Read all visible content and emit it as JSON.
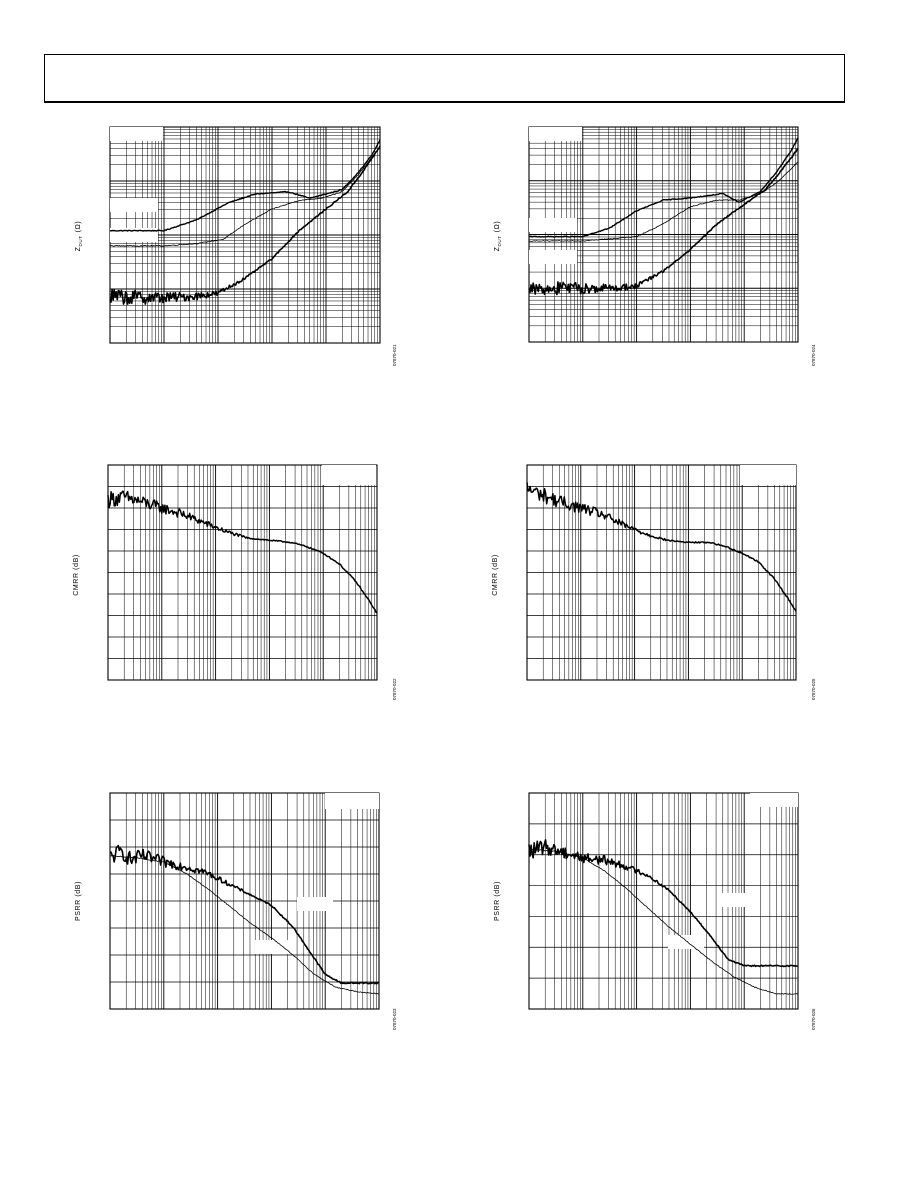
{
  "page": {
    "header": ""
  },
  "chart_data": [
    {
      "type": "line",
      "ylabel_main": "Z",
      "ylabel_sub": "DUT",
      "ylabel_unit": "(Ω)",
      "figure_code": "07870-021",
      "x_scale": "log",
      "y_scale": "log",
      "x_decades": 5,
      "y_decades": 4,
      "grid": true,
      "series": [
        {
          "values": [
            [
              0,
              0.52
            ],
            [
              0.5,
              0.52
            ],
            [
              1.0,
              0.52
            ],
            [
              1.6,
              0.57
            ],
            [
              2.2,
              0.65
            ],
            [
              2.7,
              0.69
            ],
            [
              3.3,
              0.7
            ],
            [
              3.7,
              0.67
            ],
            [
              4.0,
              0.69
            ],
            [
              4.3,
              0.71
            ],
            [
              4.6,
              0.79
            ],
            [
              4.85,
              0.87
            ],
            [
              5,
              0.94
            ]
          ],
          "stroke": 1.4
        },
        {
          "values": [
            [
              0,
              0.45
            ],
            [
              0.5,
              0.45
            ],
            [
              1.0,
              0.45
            ],
            [
              1.6,
              0.46
            ],
            [
              2.1,
              0.48
            ],
            [
              2.5,
              0.55
            ],
            [
              3.0,
              0.62
            ],
            [
              3.5,
              0.66
            ],
            [
              3.9,
              0.67
            ],
            [
              4.3,
              0.7
            ],
            [
              4.6,
              0.78
            ],
            [
              4.85,
              0.86
            ],
            [
              5,
              0.91
            ]
          ],
          "stroke": 0.8
        },
        {
          "values": [
            [
              0,
              0.215
            ],
            [
              0.5,
              0.21
            ],
            [
              1.0,
              0.21
            ],
            [
              1.5,
              0.215
            ],
            [
              2.0,
              0.23
            ],
            [
              2.5,
              0.3
            ],
            [
              3.0,
              0.39
            ],
            [
              3.5,
              0.52
            ],
            [
              4.0,
              0.62
            ],
            [
              4.4,
              0.7
            ],
            [
              4.7,
              0.8
            ],
            [
              5,
              0.91
            ]
          ],
          "stroke": 1.6,
          "noisy": true
        }
      ]
    },
    {
      "type": "line",
      "ylabel_main": "CMRR (dB)",
      "figure_code": "07870-022",
      "x_scale": "log",
      "x_decades": 5,
      "y_divisions": 10,
      "grid": true,
      "series": [
        {
          "values": [
            [
              0,
              0.84
            ],
            [
              0.3,
              0.85
            ],
            [
              0.6,
              0.83
            ],
            [
              1.0,
              0.8
            ],
            [
              1.4,
              0.77
            ],
            [
              1.8,
              0.73
            ],
            [
              2.2,
              0.69
            ],
            [
              2.6,
              0.66
            ],
            [
              3.0,
              0.65
            ],
            [
              3.4,
              0.64
            ],
            [
              3.7,
              0.62
            ],
            [
              4.0,
              0.59
            ],
            [
              4.3,
              0.54
            ],
            [
              4.6,
              0.46
            ],
            [
              4.85,
              0.37
            ],
            [
              5,
              0.31
            ]
          ],
          "stroke": 1.5,
          "noisy": true
        }
      ]
    },
    {
      "type": "line",
      "ylabel_main": "PSRR (dB)",
      "figure_code": "07870-023",
      "x_scale": "log",
      "x_decades": 5,
      "y_divisions": 8,
      "grid": true,
      "series": [
        {
          "values": [
            [
              0,
              0.7
            ],
            [
              0.2,
              0.73
            ],
            [
              0.4,
              0.69
            ],
            [
              0.6,
              0.71
            ],
            [
              1.0,
              0.68
            ],
            [
              1.4,
              0.66
            ],
            [
              1.8,
              0.63
            ],
            [
              2.2,
              0.58
            ],
            [
              2.6,
              0.53
            ],
            [
              3.0,
              0.48
            ],
            [
              3.4,
              0.38
            ],
            [
              3.7,
              0.27
            ],
            [
              4.0,
              0.16
            ],
            [
              4.3,
              0.12
            ],
            [
              4.6,
              0.12
            ],
            [
              5,
              0.12
            ]
          ],
          "stroke": 1.6,
          "noisy": true
        },
        {
          "values": [
            [
              0,
              0.71
            ],
            [
              0.5,
              0.7
            ],
            [
              1.0,
              0.68
            ],
            [
              1.4,
              0.63
            ],
            [
              1.8,
              0.56
            ],
            [
              2.2,
              0.48
            ],
            [
              2.6,
              0.4
            ],
            [
              3.0,
              0.33
            ],
            [
              3.4,
              0.25
            ],
            [
              3.8,
              0.16
            ],
            [
              4.2,
              0.1
            ],
            [
              4.6,
              0.08
            ],
            [
              5,
              0.07
            ]
          ],
          "stroke": 0.8
        }
      ]
    },
    {
      "type": "line",
      "ylabel_main": "Z",
      "ylabel_sub": "DUT",
      "ylabel_unit": "(Ω)",
      "figure_code": "07870-024",
      "x_scale": "log",
      "y_scale": "log",
      "x_decades": 5,
      "y_decades": 4,
      "grid": true,
      "series": [
        {
          "values": [
            [
              0,
              0.49
            ],
            [
              0.5,
              0.49
            ],
            [
              1.0,
              0.49
            ],
            [
              1.5,
              0.53
            ],
            [
              2.0,
              0.61
            ],
            [
              2.5,
              0.66
            ],
            [
              3.0,
              0.67
            ],
            [
              3.6,
              0.69
            ],
            [
              3.9,
              0.65
            ],
            [
              4.3,
              0.7
            ],
            [
              4.6,
              0.79
            ],
            [
              4.85,
              0.88
            ],
            [
              5,
              0.95
            ]
          ],
          "stroke": 1.4
        },
        {
          "values": [
            [
              0,
              0.47
            ],
            [
              0.5,
              0.47
            ],
            [
              1.0,
              0.47
            ],
            [
              1.5,
              0.48
            ],
            [
              2.0,
              0.49
            ],
            [
              2.5,
              0.55
            ],
            [
              3.0,
              0.63
            ],
            [
              3.5,
              0.66
            ],
            [
              3.9,
              0.66
            ],
            [
              4.3,
              0.69
            ],
            [
              4.6,
              0.74
            ],
            [
              4.85,
              0.8
            ],
            [
              5,
              0.84
            ]
          ],
          "stroke": 0.8
        },
        {
          "values": [
            [
              0,
              0.25
            ],
            [
              0.5,
              0.25
            ],
            [
              1.0,
              0.25
            ],
            [
              1.5,
              0.25
            ],
            [
              2.0,
              0.26
            ],
            [
              2.5,
              0.33
            ],
            [
              3.0,
              0.43
            ],
            [
              3.5,
              0.55
            ],
            [
              4.0,
              0.64
            ],
            [
              4.4,
              0.71
            ],
            [
              4.7,
              0.8
            ],
            [
              5,
              0.9
            ]
          ],
          "stroke": 1.6,
          "noisy": true
        }
      ]
    },
    {
      "type": "line",
      "ylabel_main": "CMRR (dB)",
      "figure_code": "07870-025",
      "x_scale": "log",
      "x_decades": 5,
      "y_divisions": 10,
      "grid": true,
      "series": [
        {
          "values": [
            [
              0,
              0.89
            ],
            [
              0.3,
              0.86
            ],
            [
              0.6,
              0.83
            ],
            [
              1.0,
              0.8
            ],
            [
              1.4,
              0.77
            ],
            [
              1.8,
              0.72
            ],
            [
              2.2,
              0.68
            ],
            [
              2.6,
              0.65
            ],
            [
              3.0,
              0.64
            ],
            [
              3.4,
              0.64
            ],
            [
              3.7,
              0.62
            ],
            [
              4.0,
              0.59
            ],
            [
              4.3,
              0.55
            ],
            [
              4.6,
              0.47
            ],
            [
              4.85,
              0.38
            ],
            [
              5,
              0.32
            ]
          ],
          "stroke": 1.5,
          "noisy": true
        }
      ]
    },
    {
      "type": "line",
      "ylabel_main": "PSRR (dB)",
      "figure_code": "07870-026",
      "x_scale": "log",
      "x_decades": 5,
      "y_divisions": 7,
      "grid": true,
      "series": [
        {
          "values": [
            [
              0,
              0.73
            ],
            [
              0.3,
              0.75
            ],
            [
              0.6,
              0.73
            ],
            [
              1.0,
              0.7
            ],
            [
              1.4,
              0.69
            ],
            [
              1.8,
              0.66
            ],
            [
              2.2,
              0.62
            ],
            [
              2.6,
              0.55
            ],
            [
              3.0,
              0.45
            ],
            [
              3.4,
              0.33
            ],
            [
              3.7,
              0.23
            ],
            [
              4.0,
              0.2
            ],
            [
              4.4,
              0.2
            ],
            [
              5,
              0.2
            ]
          ],
          "stroke": 1.6,
          "noisy": true
        },
        {
          "values": [
            [
              0,
              0.74
            ],
            [
              0.5,
              0.73
            ],
            [
              1.0,
              0.7
            ],
            [
              1.4,
              0.64
            ],
            [
              1.8,
              0.56
            ],
            [
              2.2,
              0.47
            ],
            [
              2.6,
              0.38
            ],
            [
              3.0,
              0.3
            ],
            [
              3.4,
              0.22
            ],
            [
              3.8,
              0.15
            ],
            [
              4.2,
              0.1
            ],
            [
              4.6,
              0.07
            ],
            [
              5,
              0.07
            ]
          ],
          "stroke": 0.8
        }
      ]
    }
  ]
}
